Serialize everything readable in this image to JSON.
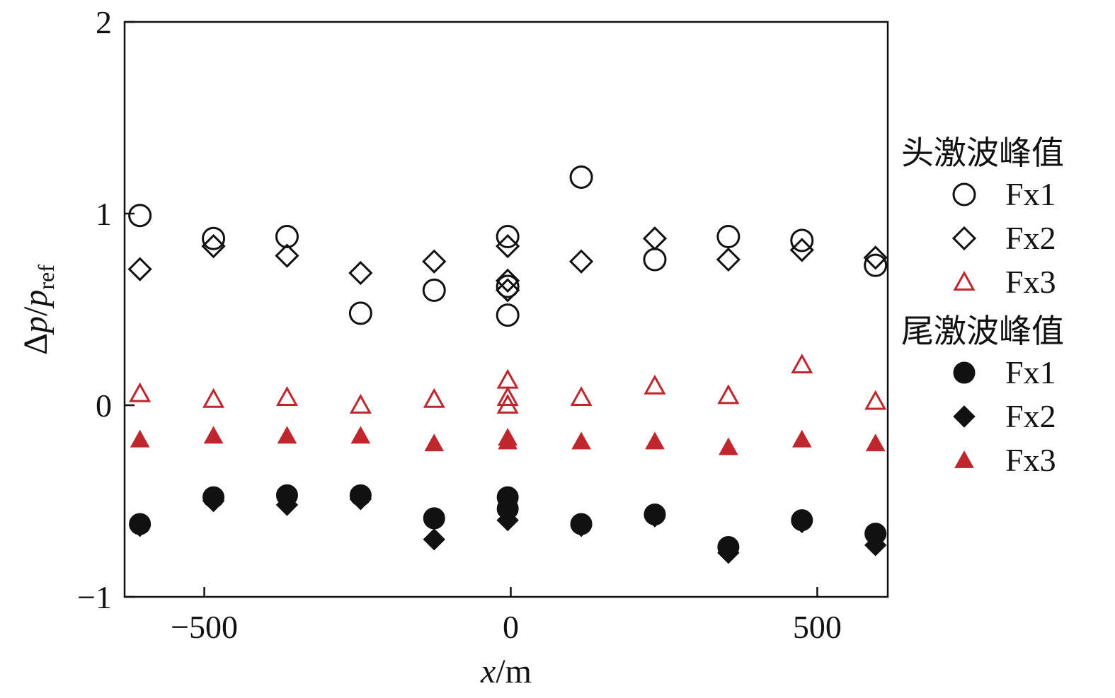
{
  "chart_data": {
    "type": "scatter",
    "xlabel_var": "x",
    "xlabel_unit": "/m",
    "ylabel_num": "Δ",
    "ylabel_p": "p",
    "ylabel_slash": "/",
    "ylabel_p2": "p",
    "ylabel_sub": "ref",
    "xlim": [
      -630,
      615
    ],
    "ylim": [
      -1,
      2
    ],
    "xticks": [
      -500,
      0,
      500
    ],
    "xtick_labels": [
      "−500",
      "0",
      "500"
    ],
    "yticks": [
      -1,
      0,
      1,
      2
    ],
    "ytick_labels": [
      "−1",
      "0",
      "1",
      "2"
    ],
    "grid": false,
    "legend_placement": "right",
    "colors": {
      "black": "#111111",
      "red": "#c0262d"
    },
    "legend_groups": [
      {
        "title": "头激波峰值",
        "filled": false
      },
      {
        "title": "尾激波峰值",
        "filled": true
      }
    ],
    "series": [
      {
        "name": "Fx1",
        "group": "头激波峰值",
        "marker": "circle",
        "filled": false,
        "color": "#111111",
        "points": [
          [
            -605,
            0.99
          ],
          [
            -485,
            0.87
          ],
          [
            -365,
            0.88
          ],
          [
            -245,
            0.48
          ],
          [
            -125,
            0.6
          ],
          [
            -5,
            0.88
          ],
          [
            -5,
            0.62
          ],
          [
            -5,
            0.47
          ],
          [
            115,
            1.19
          ],
          [
            235,
            0.76
          ],
          [
            355,
            0.88
          ],
          [
            475,
            0.86
          ],
          [
            595,
            0.73
          ]
        ]
      },
      {
        "name": "Fx2",
        "group": "头激波峰值",
        "marker": "diamond",
        "filled": false,
        "color": "#111111",
        "points": [
          [
            -605,
            0.71
          ],
          [
            -485,
            0.83
          ],
          [
            -365,
            0.78
          ],
          [
            -245,
            0.69
          ],
          [
            -125,
            0.75
          ],
          [
            -5,
            0.83
          ],
          [
            -5,
            0.65
          ],
          [
            -5,
            0.6
          ],
          [
            115,
            0.75
          ],
          [
            235,
            0.87
          ],
          [
            355,
            0.76
          ],
          [
            475,
            0.81
          ],
          [
            595,
            0.77
          ]
        ]
      },
      {
        "name": "Fx3",
        "group": "头激波峰值",
        "marker": "triangle",
        "filled": false,
        "color": "#c0262d",
        "points": [
          [
            -605,
            0.06
          ],
          [
            -485,
            0.03
          ],
          [
            -365,
            0.04
          ],
          [
            -245,
            0.0
          ],
          [
            -125,
            0.03
          ],
          [
            -5,
            0.13
          ],
          [
            -5,
            0.04
          ],
          [
            -5,
            0.0
          ],
          [
            115,
            0.04
          ],
          [
            235,
            0.1
          ],
          [
            355,
            0.05
          ],
          [
            475,
            0.21
          ],
          [
            595,
            0.02
          ]
        ]
      },
      {
        "name": "Fx1",
        "group": "尾激波峰值",
        "marker": "circle",
        "filled": true,
        "color": "#111111",
        "points": [
          [
            -605,
            -0.62
          ],
          [
            -485,
            -0.48
          ],
          [
            -365,
            -0.47
          ],
          [
            -245,
            -0.47
          ],
          [
            -125,
            -0.59
          ],
          [
            -5,
            -0.48
          ],
          [
            -5,
            -0.54
          ],
          [
            115,
            -0.62
          ],
          [
            235,
            -0.57
          ],
          [
            355,
            -0.74
          ],
          [
            475,
            -0.6
          ],
          [
            595,
            -0.67
          ]
        ]
      },
      {
        "name": "Fx2",
        "group": "尾激波峰值",
        "marker": "diamond",
        "filled": true,
        "color": "#111111",
        "points": [
          [
            -605,
            -0.63
          ],
          [
            -485,
            -0.5
          ],
          [
            -365,
            -0.52
          ],
          [
            -245,
            -0.49
          ],
          [
            -125,
            -0.7
          ],
          [
            -5,
            -0.6
          ],
          [
            115,
            -0.63
          ],
          [
            235,
            -0.58
          ],
          [
            355,
            -0.77
          ],
          [
            475,
            -0.61
          ],
          [
            595,
            -0.73
          ]
        ]
      },
      {
        "name": "Fx3",
        "group": "尾激波峰值",
        "marker": "triangle",
        "filled": true,
        "color": "#c0262d",
        "points": [
          [
            -605,
            -0.18
          ],
          [
            -485,
            -0.16
          ],
          [
            -365,
            -0.16
          ],
          [
            -245,
            -0.16
          ],
          [
            -125,
            -0.2
          ],
          [
            -5,
            -0.17
          ],
          [
            -5,
            -0.19
          ],
          [
            115,
            -0.19
          ],
          [
            235,
            -0.19
          ],
          [
            355,
            -0.22
          ],
          [
            475,
            -0.18
          ],
          [
            595,
            -0.2
          ]
        ]
      }
    ]
  }
}
